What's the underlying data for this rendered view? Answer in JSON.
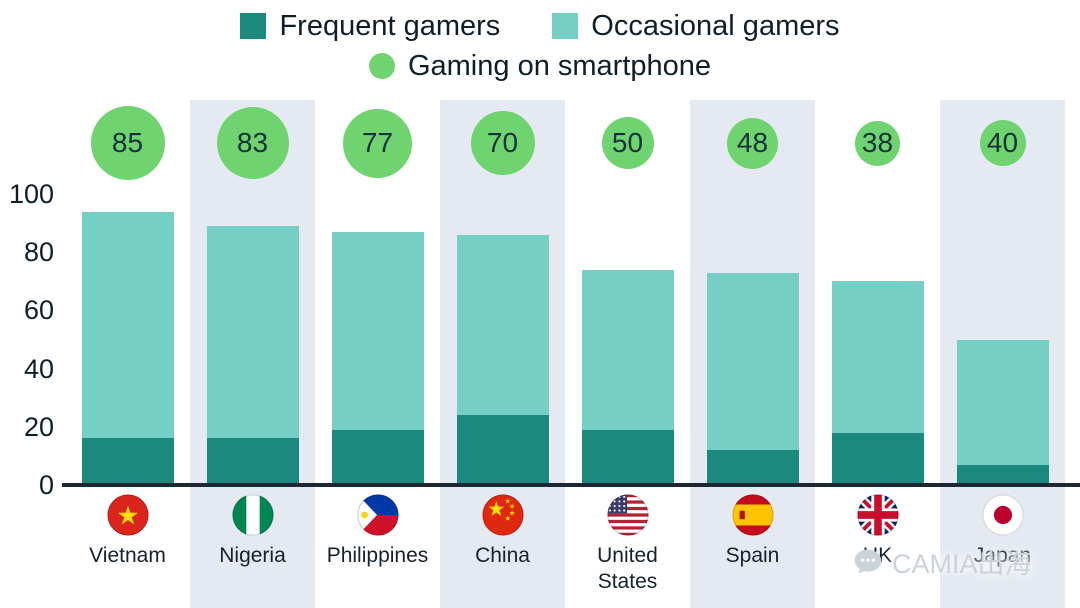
{
  "legend": {
    "frequent_label": "Frequent gamers",
    "occasional_label": "Occasional gamers",
    "smartphone_label": "Gaming on smartphone"
  },
  "colors": {
    "frequent": "#1b897e",
    "occasional": "#75cfc4",
    "smartphone_green": "#6fd36f",
    "stripe": "#e5eaf2",
    "axis": "#1d2733",
    "text": "#0f1e28",
    "watermark": "#cbd2d9"
  },
  "chart_data": {
    "type": "bar",
    "stacked": true,
    "title": "",
    "categories": [
      "Vietnam",
      "Nigeria",
      "Philippines",
      "China",
      "United States",
      "Spain",
      "UK",
      "Japan"
    ],
    "series": [
      {
        "name": "Frequent gamers",
        "values": [
          16,
          16,
          19,
          24,
          19,
          12,
          18,
          7
        ]
      },
      {
        "name": "Occasional gamers",
        "values": [
          78,
          73,
          68,
          62,
          55,
          61,
          52,
          43
        ]
      }
    ],
    "stack_totals": [
      94,
      89,
      87,
      86,
      74,
      73,
      70,
      50
    ],
    "smartphone": [
      85,
      83,
      77,
      70,
      50,
      48,
      38,
      40
    ],
    "yticks": [
      0,
      20,
      40,
      60,
      80,
      100
    ],
    "ylim": [
      0,
      100
    ],
    "legend_position": "top",
    "grid": false
  },
  "flags": [
    "vietnam-flag",
    "nigeria-flag",
    "philippines-flag",
    "china-flag",
    "us-flag",
    "spain-flag",
    "uk-flag",
    "japan-flag"
  ],
  "watermark": {
    "text": "CAMIA出海"
  }
}
